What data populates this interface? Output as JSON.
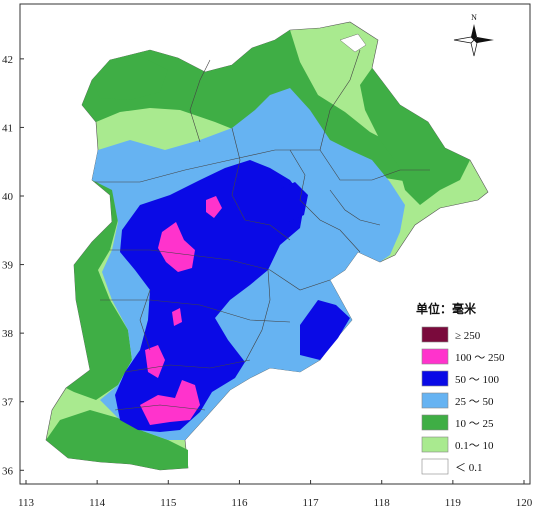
{
  "map": {
    "x_ticks": [
      "113",
      "114",
      "115",
      "116",
      "117",
      "118",
      "119",
      "120"
    ],
    "y_ticks": [
      "36",
      "37",
      "38",
      "39",
      "40",
      "41",
      "42"
    ],
    "x_range": [
      113,
      120
    ],
    "y_range": [
      35.8,
      42.8
    ]
  },
  "compass": {
    "north_label": "N"
  },
  "legend": {
    "title": "单位：毫米",
    "items": [
      {
        "label": "≥ 250",
        "color": "#7a0a3c"
      },
      {
        "label": "100 ～ 250",
        "color": "#ff33cc"
      },
      {
        "label": "50 ～ 100",
        "color": "#0a0ae6"
      },
      {
        "label": "25 ～ 50",
        "color": "#66b3f2"
      },
      {
        "label": "10 ～ 25",
        "color": "#3fae45"
      },
      {
        "label": "0.1～ 10",
        "color": "#a9ea8f"
      },
      {
        "label": "＜ 0.1",
        "color": "#ffffff"
      }
    ]
  }
}
